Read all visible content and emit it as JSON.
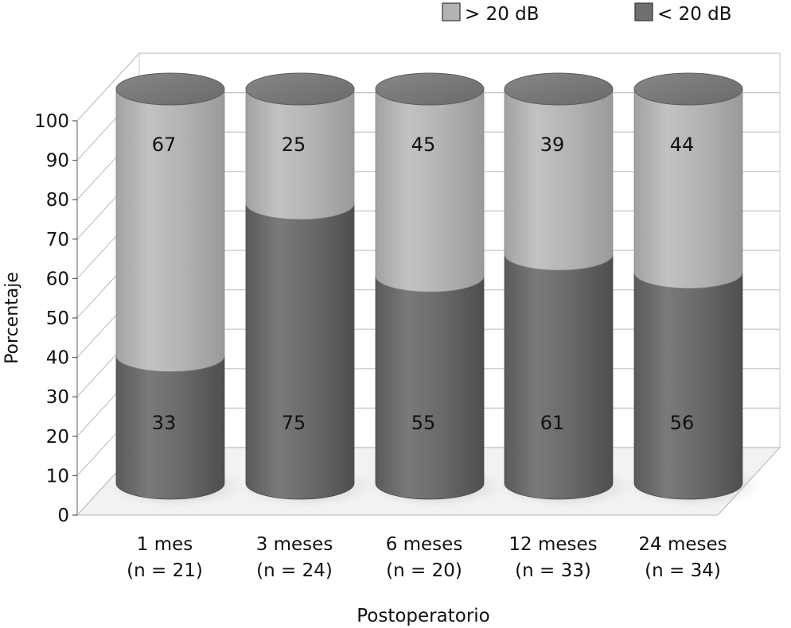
{
  "chart_data": {
    "type": "bar",
    "stacked": true,
    "style": "3d-cylinder",
    "categories": [
      "1 mes\n(n = 21)",
      "3 meses\n(n = 24)",
      "6 meses\n(n = 20)",
      "12 meses\n(n = 33)",
      "24 meses\n(n = 34)"
    ],
    "series": [
      {
        "name": "< 20 dB",
        "values": [
          33,
          75,
          55,
          61,
          56
        ],
        "color": "#6f6f6f"
      },
      {
        "name": "> 20 dB",
        "values": [
          67,
          25,
          45,
          39,
          44
        ],
        "color": "#b3b3b3"
      }
    ],
    "xlabel": "Postoperatorio",
    "ylabel": "Porcentaje",
    "ylim": [
      0,
      100
    ],
    "yticks": [
      0,
      10,
      20,
      30,
      40,
      50,
      60,
      70,
      80,
      90,
      100
    ],
    "grid": true,
    "legend": "top-right",
    "legend_order": [
      "> 20 dB",
      "< 20 dB"
    ]
  }
}
